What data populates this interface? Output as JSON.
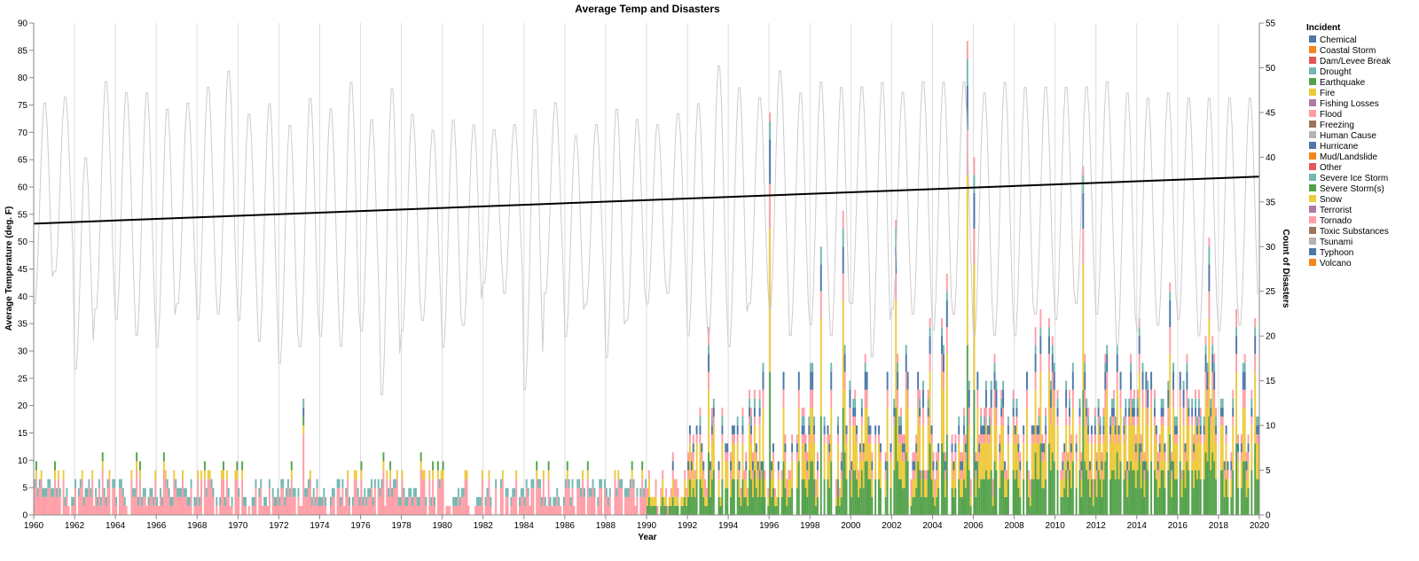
{
  "chart_data": {
    "type": "bar",
    "title": "Average Temp and Disasters",
    "xlabel": "Year",
    "ylabel_left": "Average Temperature (deg. F)",
    "ylabel_right": "Count of Disasters",
    "xlim": [
      1960,
      2020
    ],
    "x_ticks": [
      "1960",
      "1962",
      "1964",
      "1966",
      "1968",
      "1970",
      "1972",
      "1974",
      "1976",
      "1978",
      "1980",
      "1982",
      "1984",
      "1986",
      "1988",
      "1990",
      "1992",
      "1994",
      "1996",
      "1998",
      "2000",
      "2002",
      "2004",
      "2006",
      "2008",
      "2010",
      "2012",
      "2014",
      "2016",
      "2018",
      "2020"
    ],
    "ylim_left": [
      0,
      90
    ],
    "y_ticks_left": [
      "0",
      "5",
      "10",
      "15",
      "20",
      "25",
      "30",
      "35",
      "40",
      "45",
      "50",
      "55",
      "60",
      "65",
      "70",
      "75",
      "80",
      "85",
      "90"
    ],
    "ylim_right": [
      0,
      55
    ],
    "y_ticks_right": [
      "0",
      "5",
      "10",
      "15",
      "20",
      "25",
      "30",
      "35",
      "40",
      "45",
      "50",
      "55"
    ],
    "grid": "vertical",
    "legend_title": "Incident",
    "legend_position": "right",
    "legend": [
      {
        "name": "Chemical",
        "color": "#4c78a8"
      },
      {
        "name": "Coastal Storm",
        "color": "#f58518"
      },
      {
        "name": "Dam/Levee Break",
        "color": "#e45756"
      },
      {
        "name": "Drought",
        "color": "#72b7b2"
      },
      {
        "name": "Earthquake",
        "color": "#54a24b"
      },
      {
        "name": "Fire",
        "color": "#eeca3b"
      },
      {
        "name": "Fishing Losses",
        "color": "#b279a2"
      },
      {
        "name": "Flood",
        "color": "#ff9da6"
      },
      {
        "name": "Freezing",
        "color": "#9d755d"
      },
      {
        "name": "Human Cause",
        "color": "#bab0ac"
      },
      {
        "name": "Hurricane",
        "color": "#4c78a8"
      },
      {
        "name": "Mud/Landslide",
        "color": "#f58518"
      },
      {
        "name": "Other",
        "color": "#e45756"
      },
      {
        "name": "Severe Ice Storm",
        "color": "#72b7b2"
      },
      {
        "name": "Severe Storm(s)",
        "color": "#54a24b"
      },
      {
        "name": "Snow",
        "color": "#eeca3b"
      },
      {
        "name": "Terrorist",
        "color": "#b279a2"
      },
      {
        "name": "Tornado",
        "color": "#ff9da6"
      },
      {
        "name": "Toxic Substances",
        "color": "#9d755d"
      },
      {
        "name": "Tsunami",
        "color": "#bab0ac"
      },
      {
        "name": "Typhoon",
        "color": "#4c78a8"
      },
      {
        "name": "Volcano",
        "color": "#f58518"
      }
    ],
    "trend_line": {
      "x": [
        1960,
        2020
      ],
      "y": [
        53.3,
        61.9
      ],
      "color": "#000000"
    },
    "temperature_line": {
      "color": "#cccccc",
      "yearly_max": [
        76,
        77,
        66,
        80,
        78,
        78,
        75,
        76,
        79,
        82,
        74,
        76,
        72,
        77,
        75,
        80,
        73,
        79,
        74,
        71,
        73,
        72,
        71,
        72,
        75,
        76,
        70,
        72,
        75,
        73,
        72,
        74,
        76,
        83,
        79,
        77,
        82,
        78,
        80,
        79,
        79,
        80,
        78,
        80,
        80,
        80,
        78,
        80,
        79,
        79,
        79,
        79,
        80,
        78,
        77,
        78,
        77,
        77,
        77,
        77
      ],
      "yearly_min": [
        38,
        44,
        26,
        37,
        35,
        32,
        30,
        38,
        35,
        36,
        35,
        31,
        27,
        30,
        32,
        30,
        33,
        21,
        33,
        35,
        30,
        34,
        42,
        40,
        22,
        40,
        32,
        38,
        28,
        35,
        38,
        40,
        32,
        32,
        30,
        38,
        37,
        32,
        34,
        32,
        38,
        28,
        37,
        36,
        33,
        36,
        32,
        32,
        32,
        36,
        35,
        38,
        36,
        30,
        33,
        34,
        35,
        32,
        33,
        34
      ]
    },
    "disaster_peaks": [
      {
        "x": 1973.2,
        "total": 13,
        "top": "Severe Storm(s)"
      },
      {
        "x": 1993.0,
        "total": 21,
        "top": "Severe Storm(s)"
      },
      {
        "x": 1996.0,
        "total": 45,
        "top": "Fire"
      },
      {
        "x": 1998.5,
        "total": 30,
        "top": "Fire"
      },
      {
        "x": 1999.6,
        "total": 34,
        "top": "Fire"
      },
      {
        "x": 2002.2,
        "total": 33,
        "top": "Fire"
      },
      {
        "x": 2004.7,
        "total": 27,
        "top": "Fire"
      },
      {
        "x": 2005.7,
        "total": 53,
        "top": "Coastal Storm"
      },
      {
        "x": 2006.0,
        "total": 40,
        "top": "Fire"
      },
      {
        "x": 2011.3,
        "total": 39,
        "top": "Fire"
      },
      {
        "x": 2017.5,
        "total": 31,
        "top": "Fire"
      },
      {
        "x": 2018.8,
        "total": 23,
        "top": "Fire"
      }
    ]
  }
}
